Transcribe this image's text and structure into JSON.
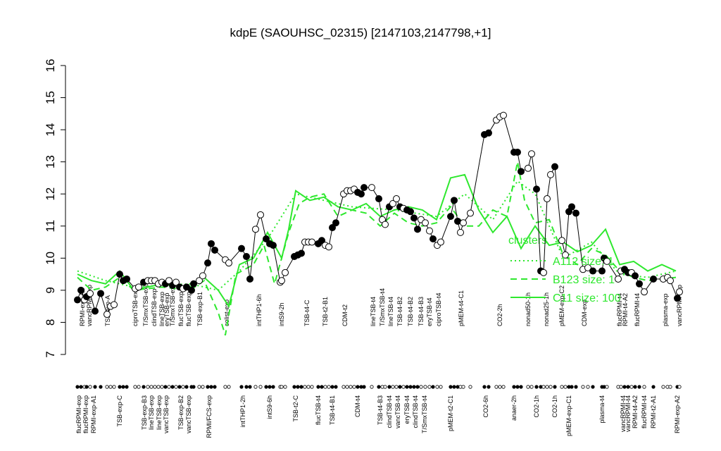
{
  "chart_data": {
    "type": "scatter",
    "title": "kdpE (SAOUHSC_02315) [2147103,2147798,+1]",
    "ylim": [
      7,
      16
    ],
    "yticks": [
      7,
      8,
      9,
      10,
      11,
      12,
      13,
      14,
      15,
      16
    ],
    "xlim": [
      105,
      970
    ],
    "points": {
      "x": [
        110,
        115,
        120,
        123,
        128,
        135,
        143,
        152,
        157,
        162,
        170,
        175,
        180,
        192,
        197,
        204,
        210,
        215,
        220,
        225,
        230,
        235,
        240,
        245,
        250,
        255,
        260,
        265,
        272,
        275,
        283,
        288,
        295,
        300,
        305,
        320,
        325,
        343,
        350,
        355,
        363,
        370,
        378,
        383,
        388,
        398,
        400,
        405,
        418,
        423,
        428,
        433,
        438,
        443,
        452,
        457,
        462,
        467,
        472,
        477,
        488,
        493,
        498,
        503,
        508,
        513,
        517,
        528,
        538,
        543,
        547,
        553,
        558,
        563,
        568,
        573,
        578,
        583,
        588,
        593,
        598,
        604,
        610,
        615,
        621,
        626,
        640,
        645,
        650,
        654,
        658,
        668,
        688,
        694,
        705,
        710,
        715,
        730,
        735,
        740,
        750,
        755,
        762,
        768,
        772,
        777,
        782,
        788,
        798,
        803,
        808,
        812,
        818,
        828,
        835,
        842,
        855,
        858,
        862,
        878,
        882,
        887,
        892,
        897,
        902,
        908,
        915,
        928,
        942,
        948,
        952,
        962,
        965
      ],
      "values": [
        8.7,
        9.0,
        8.7,
        8.8,
        8.9,
        8.35,
        8.9,
        8.25,
        8.5,
        8.55,
        9.5,
        9.3,
        9.35,
        9.05,
        9.1,
        9.25,
        9.3,
        9.3,
        9.3,
        9.2,
        9.25,
        9.2,
        9.3,
        9.15,
        9.25,
        9.1,
        9.05,
        9.1,
        9.0,
        9.2,
        9.3,
        9.45,
        9.85,
        10.45,
        10.25,
        9.95,
        9.85,
        10.3,
        10.05,
        9.35,
        10.9,
        11.35,
        10.6,
        10.45,
        10.4,
        9.25,
        9.3,
        9.55,
        10.05,
        10.1,
        10.15,
        10.5,
        10.5,
        10.5,
        10.45,
        10.55,
        10.4,
        10.35,
        10.95,
        11.1,
        12.0,
        12.1,
        12.1,
        12.15,
        12.05,
        12.0,
        12.2,
        12.2,
        11.85,
        11.2,
        11.05,
        11.6,
        11.7,
        11.85,
        11.6,
        11.55,
        11.5,
        11.45,
        11.25,
        10.9,
        11.2,
        11.1,
        10.85,
        10.6,
        10.4,
        10.5,
        11.3,
        11.8,
        11.15,
        10.8,
        11.1,
        11.4,
        13.85,
        13.9,
        14.3,
        14.4,
        14.45,
        13.3,
        13.3,
        12.7,
        12.8,
        13.25,
        12.15,
        9.6,
        9.55,
        11.85,
        12.6,
        12.85,
        10.55,
        10.1,
        11.45,
        11.6,
        11.4,
        9.65,
        9.7,
        9.6,
        9.6,
        10.0,
        9.9,
        9.35,
        9.6,
        9.65,
        9.55,
        9.55,
        9.45,
        9.2,
        8.95,
        9.35,
        9.35,
        9.4,
        9.3,
        8.75,
        8.95
      ],
      "fills": [
        "black",
        "black",
        "white",
        "black",
        "white",
        "black",
        "black",
        "white",
        "white",
        "white",
        "black",
        "black",
        "black",
        "white",
        "white",
        "black",
        "white",
        "white",
        "white",
        "white",
        "white",
        "black",
        "white",
        "black",
        "white",
        "black",
        "white",
        "black",
        "black",
        "black",
        "white",
        "white",
        "black",
        "black",
        "black",
        "white",
        "white",
        "black",
        "black",
        "black",
        "white",
        "white",
        "black",
        "black",
        "black",
        "white",
        "white",
        "white",
        "black",
        "black",
        "black",
        "white",
        "white",
        "white",
        "black",
        "black",
        "white",
        "white",
        "black",
        "black",
        "white",
        "white",
        "white",
        "white",
        "black",
        "black",
        "black",
        "white",
        "black",
        "white",
        "white",
        "black",
        "white",
        "white",
        "black",
        "white",
        "black",
        "black",
        "black",
        "black",
        "white",
        "white",
        "white",
        "black",
        "white",
        "white",
        "black",
        "black",
        "black",
        "white",
        "white",
        "white",
        "black",
        "black",
        "white",
        "white",
        "white",
        "black",
        "black",
        "black",
        "white",
        "white",
        "black",
        "black",
        "white",
        "white",
        "white",
        "black",
        "white",
        "white",
        "black",
        "black",
        "black",
        "white",
        "white",
        "black",
        "black",
        "black",
        "white",
        "white",
        "white",
        "black",
        "black",
        "white",
        "black",
        "black",
        "white",
        "black",
        "white",
        "white",
        "white",
        "black",
        "white"
      ]
    },
    "xticks_top": [
      {
        "value": 117,
        "label": "RPMI-exp-A2"
      },
      {
        "value": 127,
        "label": "vancRPMI-exp"
      },
      {
        "value": 153,
        "label": "TSB-exp-A"
      },
      {
        "value": 192,
        "label": "ciproTSB-exp"
      },
      {
        "value": 207,
        "label": "T/SmxTSB-exp"
      },
      {
        "value": 219,
        "label": "clindTSB-exp"
      },
      {
        "value": 230,
        "label": "lineTSB-exp"
      },
      {
        "value": 237,
        "label": "eryTSB-exp"
      },
      {
        "value": 245,
        "label": "T/SmxTSB-exp"
      },
      {
        "value": 257,
        "label": "flucTSB-exp"
      },
      {
        "value": 268,
        "label": "flucTSB-exp"
      },
      {
        "value": 284,
        "label": "TSB-exp-B1"
      },
      {
        "value": 322,
        "label": "colist-exp"
      },
      {
        "value": 368,
        "label": "intTHP1-6h"
      },
      {
        "value": 400,
        "label": "intS9-2h"
      },
      {
        "value": 436,
        "label": "TSB-t4-C"
      },
      {
        "value": 462,
        "label": "TSB-t2-B1"
      },
      {
        "value": 490,
        "label": "CDM-t2"
      },
      {
        "value": 530,
        "label": "lineTSB-t4"
      },
      {
        "value": 543,
        "label": "T/SmxTSB-t4"
      },
      {
        "value": 555,
        "label": "lineTSB-t4"
      },
      {
        "value": 568,
        "label": "TSB-t4-B2"
      },
      {
        "value": 583,
        "label": "TSB-t4-B2"
      },
      {
        "value": 598,
        "label": "TSB-t4-B3"
      },
      {
        "value": 610,
        "label": "eryTSB-t4"
      },
      {
        "value": 623,
        "label": "ciproTSB-t4"
      },
      {
        "value": 655,
        "label": "pMEM-t4-C1"
      },
      {
        "value": 710,
        "label": "CO2-2h"
      },
      {
        "value": 750,
        "label": "nonad50-1h"
      },
      {
        "value": 776,
        "label": "nonad25-1h"
      },
      {
        "value": 798,
        "label": "pMEM-exp-C2"
      },
      {
        "value": 830,
        "label": "CDM-exp"
      },
      {
        "value": 880,
        "label": "flucRPMI-t4"
      },
      {
        "value": 888,
        "label": "RPMI-t4-A2"
      },
      {
        "value": 905,
        "label": "flucRPMI-t4"
      },
      {
        "value": 945,
        "label": "plasma-exp"
      },
      {
        "value": 965,
        "label": "vancRPMI-exp"
      }
    ],
    "xticks_bottom": [
      {
        "value": 112,
        "label": "flucRPMI-exp"
      },
      {
        "value": 122,
        "label": "flucRPMI-exp"
      },
      {
        "value": 133,
        "label": "RPMI-exp-A1"
      },
      {
        "value": 170,
        "label": "TSB-exp-C"
      },
      {
        "value": 205,
        "label": "TSB-exp-B3"
      },
      {
        "value": 215,
        "label": "lineTSB-exp"
      },
      {
        "value": 226,
        "label": "lineTSB-exp"
      },
      {
        "value": 236,
        "label": "vancTSB-exp"
      },
      {
        "value": 257,
        "label": "TSB-exp-B2"
      },
      {
        "value": 268,
        "label": "vancTSB-exp"
      },
      {
        "value": 297,
        "label": "RPMI/FCS-exp"
      },
      {
        "value": 345,
        "label": "intTHP1-2h"
      },
      {
        "value": 383,
        "label": "intS9-6h"
      },
      {
        "value": 420,
        "label": "TSB-t2-C"
      },
      {
        "value": 452,
        "label": "flucTSB-t4"
      },
      {
        "value": 472,
        "label": "TSB-t4-B1"
      },
      {
        "value": 508,
        "label": "CDM-t4"
      },
      {
        "value": 540,
        "label": "TSB-t4-B3"
      },
      {
        "value": 553,
        "label": "clindTSB-t4"
      },
      {
        "value": 565,
        "label": "vancTSB-t4"
      },
      {
        "value": 578,
        "label": "eryTSB-t4"
      },
      {
        "value": 590,
        "label": "clindTSB-t4"
      },
      {
        "value": 603,
        "label": "T/SmxTSB-t4"
      },
      {
        "value": 640,
        "label": "pMEM-t2-C1"
      },
      {
        "value": 690,
        "label": "CO2-6h"
      },
      {
        "value": 730,
        "label": "anaer-2h"
      },
      {
        "value": 762,
        "label": "CO2-1h"
      },
      {
        "value": 788,
        "label": "CO2-1h"
      },
      {
        "value": 808,
        "label": "pMEM-exp-C1"
      },
      {
        "value": 855,
        "label": "plasma-t4"
      },
      {
        "value": 885,
        "label": "vancRPMI-t4"
      },
      {
        "value": 892,
        "label": "vancRPMI-t4"
      },
      {
        "value": 902,
        "label": "RPMI-t4-A2"
      },
      {
        "value": 915,
        "label": "flucRPMI-t4"
      },
      {
        "value": 928,
        "label": "RPMI-t2-A1"
      },
      {
        "value": 962,
        "label": "RPMI-exp-A2"
      }
    ],
    "legend_title": "clusters",
    "clusters": [
      {
        "name": "A112 size: 1",
        "style": "dotted",
        "color": "#2ee82e",
        "x": [
          110,
          150,
          190,
          270,
          310,
          340,
          380,
          420,
          460,
          500,
          560,
          620,
          660,
          700,
          735,
          760,
          800,
          840,
          880,
          920,
          960
        ],
        "values": [
          9.6,
          9.3,
          9.1,
          9.2,
          9.0,
          9.6,
          10.6,
          12.0,
          11.8,
          11.6,
          11.5,
          11.3,
          12.0,
          11.2,
          12.4,
          12.0,
          10.0,
          10.5,
          9.5,
          9.4,
          9.6
        ]
      },
      {
        "name": "B123 size: 1",
        "style": "dashed",
        "color": "#2ee82e",
        "x": [
          110,
          130,
          150,
          170,
          190,
          230,
          270,
          290,
          310,
          320,
          335,
          360,
          375,
          390,
          410,
          425,
          440,
          460,
          480,
          500,
          520,
          540,
          560,
          580,
          600,
          620,
          640,
          660,
          680,
          700,
          720,
          735,
          745,
          760,
          780,
          800,
          820,
          840,
          860,
          880,
          900,
          920,
          960
        ],
        "values": [
          9.4,
          9.0,
          9.1,
          9.4,
          9.0,
          9.1,
          9.0,
          9.3,
          8.3,
          7.6,
          9.5,
          9.8,
          10.4,
          9.2,
          10.8,
          11.7,
          11.9,
          12.0,
          11.3,
          11.5,
          11.4,
          11.0,
          11.4,
          11.1,
          11.0,
          11.1,
          11.6,
          11.0,
          11.0,
          11.5,
          11.3,
          13.0,
          11.8,
          11.1,
          11.2,
          10.1,
          9.8,
          10.3,
          10.1,
          9.6,
          9.4,
          9.3,
          9.4
        ]
      },
      {
        "name": "C11 size: 100",
        "style": "solid",
        "color": "#2ee82e",
        "x": [
          110,
          130,
          150,
          170,
          190,
          230,
          270,
          290,
          310,
          325,
          340,
          360,
          380,
          400,
          410,
          420,
          440,
          460,
          480,
          500,
          520,
          540,
          560,
          580,
          600,
          620,
          640,
          660,
          680,
          700,
          720,
          740,
          760,
          780,
          800,
          820,
          840,
          860,
          880,
          900,
          920,
          940,
          960
        ],
        "values": [
          9.5,
          9.3,
          9.2,
          9.6,
          9.0,
          9.2,
          9.1,
          9.4,
          9.0,
          8.5,
          9.8,
          10.0,
          10.8,
          10.0,
          10.9,
          12.1,
          11.8,
          11.9,
          11.6,
          11.5,
          11.7,
          11.3,
          11.5,
          11.6,
          11.5,
          11.2,
          12.5,
          12.6,
          11.5,
          10.8,
          11.3,
          10.3,
          11.0,
          10.4,
          10.5,
          10.2,
          10.4,
          10.9,
          9.8,
          9.9,
          9.6,
          9.8,
          9.6
        ]
      }
    ]
  }
}
